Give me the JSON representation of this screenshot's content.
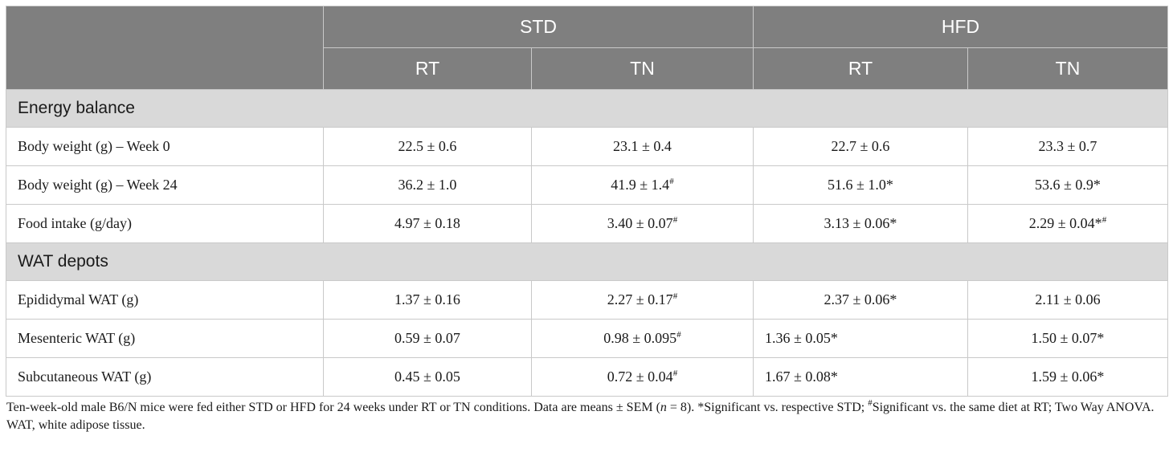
{
  "header": {
    "group_std": "STD",
    "group_hfd": "HFD",
    "sub": [
      "RT",
      "TN",
      "RT",
      "TN"
    ]
  },
  "sections": [
    {
      "title": "Energy balance",
      "rows": [
        {
          "label": "Body weight (g) – Week 0",
          "values": [
            "22.5 ± 0.6",
            "23.1 ± 0.4",
            "22.7 ± 0.6",
            "23.3 ± 0.7"
          ],
          "marks": [
            "",
            "",
            "",
            ""
          ]
        },
        {
          "label": "Body weight (g) – Week 24",
          "values": [
            "36.2 ± 1.0",
            "41.9 ± 1.4",
            "51.6 ± 1.0*",
            "53.6 ± 0.9*"
          ],
          "marks": [
            "",
            "#",
            "",
            ""
          ]
        },
        {
          "label": "Food intake (g/day)",
          "values": [
            "4.97 ± 0.18",
            "3.40 ± 0.07",
            "3.13 ± 0.06*",
            "2.29 ± 0.04*"
          ],
          "marks": [
            "",
            "#",
            "",
            "#"
          ]
        }
      ]
    },
    {
      "title": "WAT depots",
      "rows": [
        {
          "label": "Epididymal WAT (g)",
          "values": [
            "1.37 ± 0.16",
            "2.27 ± 0.17",
            "2.37 ± 0.06*",
            "2.11 ± 0.06"
          ],
          "marks": [
            "",
            "#",
            "",
            ""
          ]
        },
        {
          "label": "Mesenteric WAT (g)",
          "values": [
            "0.59 ± 0.07",
            "0.98 ± 0.095",
            "1.36 ± 0.05*",
            "1.50 ± 0.07*"
          ],
          "marks": [
            "",
            "#",
            "",
            ""
          ]
        },
        {
          "label": "Subcutaneous WAT (g)",
          "values": [
            "0.45 ± 0.05",
            "0.72 ± 0.04",
            "1.67 ± 0.08*",
            "1.59 ± 0.06*"
          ],
          "marks": [
            "",
            "#",
            "",
            ""
          ]
        }
      ]
    }
  ],
  "footnote": {
    "part1": "Ten-week-old male B6/N mice were fed either STD or HFD for 24 weeks under RT or TN conditions. Data are means ± SEM (",
    "n": "n",
    "part2": " = 8). *Significant vs. respective STD; ",
    "hash": "#",
    "part3": "Significant vs. the same diet at RT; Two Way ANOVA. WAT, white adipose tissue."
  }
}
